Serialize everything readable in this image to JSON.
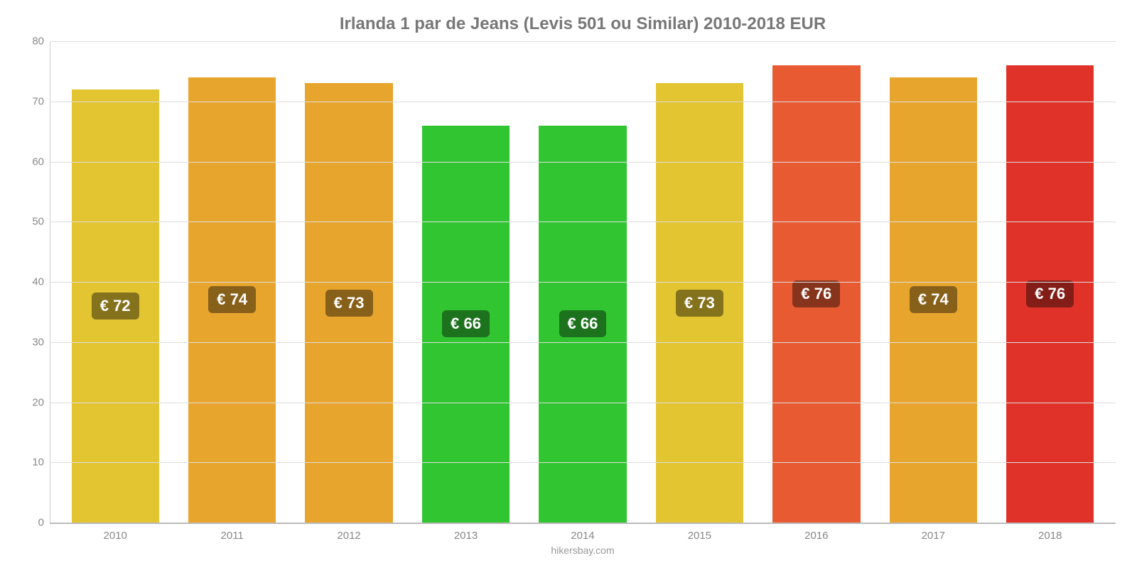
{
  "chart": {
    "type": "bar",
    "title": "Irlanda 1 par de Jeans (Levis 501 ou Similar) 2010-2018 EUR",
    "title_fontsize": 24,
    "title_color": "#777777",
    "footer": "hikersbay.com",
    "footer_fontsize": 14,
    "footer_color": "#999999",
    "background_color": "#ffffff",
    "grid_color": "#dddddd",
    "axis_color": "#bbbbbb",
    "tick_label_color": "#888888",
    "tick_fontsize": 15,
    "bar_label_fontsize": 22,
    "bar_label_color": "#ffffff",
    "bar_label_bg": "rgba(0,0,0,0.42)",
    "bar_width_pct": 75,
    "ylim": [
      0,
      80
    ],
    "yticks": [
      0,
      10,
      20,
      30,
      40,
      50,
      60,
      70,
      80
    ],
    "categories": [
      "2010",
      "2011",
      "2012",
      "2013",
      "2014",
      "2015",
      "2016",
      "2017",
      "2018"
    ],
    "values": [
      72,
      74,
      73,
      66,
      66,
      73,
      76,
      74,
      76
    ],
    "value_labels": [
      "€ 72",
      "€ 74",
      "€ 73",
      "€ 66",
      "€ 66",
      "€ 73",
      "€ 76",
      "€ 74",
      "€ 76"
    ],
    "bar_colors": [
      "#e3c532",
      "#e8a52e",
      "#e8a52e",
      "#32c532",
      "#32c532",
      "#e3c532",
      "#e85a32",
      "#e8a52e",
      "#e03228"
    ]
  }
}
